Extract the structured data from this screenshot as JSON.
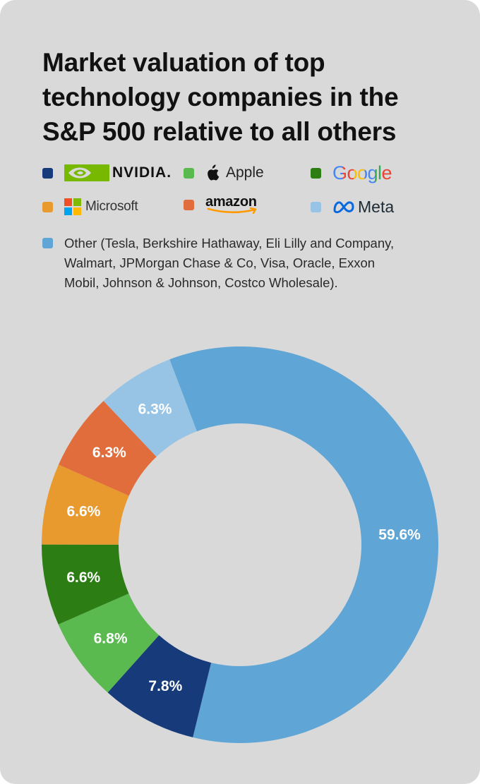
{
  "title": "Market valuation of top technology companies in the S&P 500 relative to all others",
  "legend": [
    {
      "key": "nvidia",
      "label": "NVIDIA",
      "icon": "nvidia-logo-icon",
      "color": "#163a7a"
    },
    {
      "key": "apple",
      "label": "Apple",
      "icon": "apple-logo-icon",
      "color": "#5aba4f"
    },
    {
      "key": "google",
      "label": "Google",
      "icon": "google-logo-icon",
      "color": "#2b7d14"
    },
    {
      "key": "microsoft",
      "label": "Microsoft",
      "icon": "microsoft-logo-icon",
      "color": "#e89a2e"
    },
    {
      "key": "amazon",
      "label": "amazon",
      "icon": "amazon-logo-icon",
      "color": "#e06d3b"
    },
    {
      "key": "meta",
      "label": "Meta",
      "icon": "meta-logo-icon",
      "color": "#97c4e4"
    },
    {
      "key": "other",
      "label": "Other (Tesla, Berkshire Hathaway, Eli Lilly and Company, Walmart, JPMorgan Chase & Co, Visa, Oracle, Exxon Mobil, Johnson & Johnson, Costco Wholesale).",
      "color": "#5fa5d6"
    }
  ],
  "chart_data": {
    "type": "pie",
    "variant": "donut",
    "title": "Market valuation of top technology companies in the S&P 500 relative to all others",
    "slices": [
      {
        "name": "Other",
        "value": 59.6,
        "label": "59.6%",
        "color": "#5fa5d6"
      },
      {
        "name": "NVIDIA",
        "value": 7.8,
        "label": "7.8%",
        "color": "#163a7a"
      },
      {
        "name": "Apple",
        "value": 6.8,
        "label": "6.8%",
        "color": "#5aba4f"
      },
      {
        "name": "Google",
        "value": 6.6,
        "label": "6.6%",
        "color": "#2b7d14"
      },
      {
        "name": "Microsoft",
        "value": 6.6,
        "label": "6.6%",
        "color": "#e89a2e"
      },
      {
        "name": "amazon",
        "value": 6.3,
        "label": "6.3%",
        "color": "#e06d3b"
      },
      {
        "name": "Meta",
        "value": 6.3,
        "label": "6.3%",
        "color": "#97c4e4"
      }
    ],
    "legend_position": "top"
  }
}
